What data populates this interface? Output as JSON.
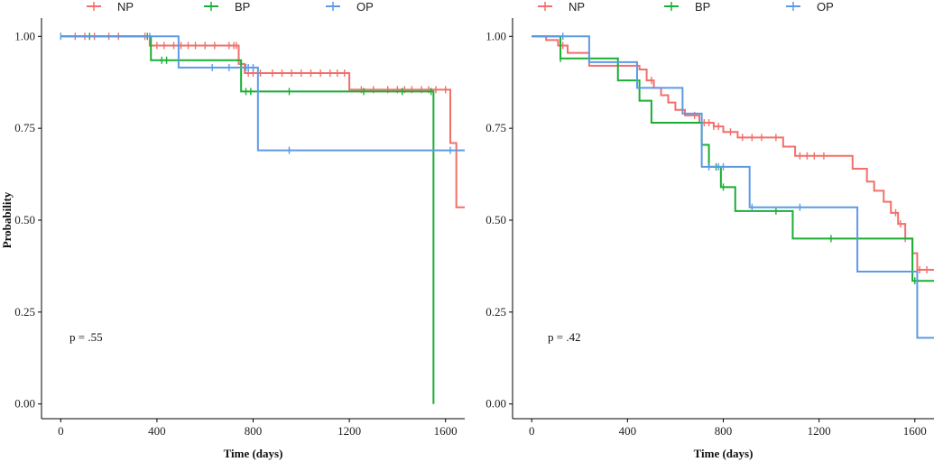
{
  "chart_data": [
    {
      "type": "line",
      "subtype": "kaplan-meier",
      "xlabel": "Time (days)",
      "ylabel": "Probability",
      "xlim": [
        -80,
        1680
      ],
      "ylim": [
        -0.04,
        1.04
      ],
      "xticks": [
        0,
        400,
        800,
        1200,
        1600
      ],
      "yticks": [
        0.0,
        0.25,
        0.5,
        0.75,
        1.0
      ],
      "xtick_labels": [
        "0",
        "400",
        "800",
        "1200",
        "1600"
      ],
      "ytick_labels": [
        "0.00",
        "0.25",
        "0.50",
        "0.75",
        "1.00"
      ],
      "annotation": "p = .55",
      "legend_position": "top",
      "series": [
        {
          "name": "NP",
          "color": "#F26F6A",
          "x": [
            0,
            370,
            740,
            765,
            1200,
            1620,
            1645,
            1680
          ],
          "y": [
            1.0,
            0.975,
            0.925,
            0.9,
            0.855,
            0.71,
            0.535,
            0.535
          ],
          "censor_x": [
            60,
            100,
            140,
            200,
            240,
            350,
            400,
            430,
            470,
            500,
            530,
            560,
            600,
            640,
            700,
            720,
            730,
            780,
            800,
            830,
            880,
            920,
            960,
            1000,
            1040,
            1080,
            1120,
            1150,
            1180,
            1250,
            1300,
            1360,
            1400,
            1430,
            1460,
            1500,
            1530,
            1560,
            1600
          ]
        },
        {
          "name": "BP",
          "color": "#1AAE35",
          "x": [
            0,
            375,
            750,
            1550,
            1550
          ],
          "y": [
            1.0,
            0.935,
            0.85,
            0.85,
            0.0
          ],
          "censor_x": [
            120,
            360,
            420,
            440,
            770,
            790,
            950,
            1260,
            1420,
            1540
          ]
        },
        {
          "name": "OP",
          "color": "#5B9BE5",
          "x": [
            0,
            490,
            820,
            1680
          ],
          "y": [
            1.0,
            0.915,
            0.69,
            0.69
          ],
          "censor_x": [
            0,
            370,
            630,
            700,
            770,
            780,
            800,
            950,
            1620
          ]
        }
      ]
    },
    {
      "type": "line",
      "subtype": "kaplan-meier",
      "xlabel": "Time (days)",
      "ylabel": "",
      "xlim": [
        -80,
        1680
      ],
      "ylim": [
        -0.04,
        1.04
      ],
      "xticks": [
        0,
        400,
        800,
        1200,
        1600
      ],
      "yticks": [
        0.0,
        0.25,
        0.5,
        0.75,
        1.0
      ],
      "xtick_labels": [
        "0",
        "400",
        "800",
        "1200",
        "1600"
      ],
      "ytick_labels": [
        "0.00",
        "0.25",
        "0.50",
        "0.75",
        "1.00"
      ],
      "annotation": "p = .42",
      "legend_position": "top",
      "series": [
        {
          "name": "NP",
          "color": "#F26F6A",
          "x": [
            0,
            60,
            110,
            150,
            240,
            450,
            480,
            510,
            540,
            570,
            600,
            640,
            700,
            760,
            800,
            860,
            1050,
            1100,
            1340,
            1400,
            1430,
            1470,
            1500,
            1530,
            1560,
            1590,
            1610,
            1680
          ],
          "y": [
            1.0,
            0.99,
            0.975,
            0.955,
            0.92,
            0.91,
            0.88,
            0.86,
            0.84,
            0.82,
            0.8,
            0.785,
            0.765,
            0.755,
            0.74,
            0.725,
            0.7,
            0.675,
            0.64,
            0.605,
            0.58,
            0.55,
            0.52,
            0.49,
            0.45,
            0.41,
            0.365,
            0.365
          ],
          "censor_x": [
            130,
            500,
            680,
            720,
            740,
            760,
            780,
            830,
            880,
            920,
            960,
            1020,
            1120,
            1150,
            1180,
            1220,
            1520,
            1540,
            1560,
            1620,
            1650
          ]
        },
        {
          "name": "BP",
          "color": "#1AAE35",
          "x": [
            0,
            120,
            360,
            450,
            500,
            710,
            740,
            790,
            850,
            1090,
            1590,
            1680
          ],
          "y": [
            1.0,
            0.94,
            0.88,
            0.825,
            0.765,
            0.705,
            0.645,
            0.59,
            0.525,
            0.45,
            0.335,
            0.335
          ],
          "censor_x": [
            120,
            770,
            800,
            1020,
            1250,
            1600
          ]
        },
        {
          "name": "OP",
          "color": "#5B9BE5",
          "x": [
            0,
            240,
            440,
            630,
            710,
            910,
            1360,
            1610,
            1680
          ],
          "y": [
            1.0,
            0.93,
            0.86,
            0.79,
            0.645,
            0.535,
            0.36,
            0.18,
            0.18
          ],
          "censor_x": [
            130,
            740,
            780,
            800,
            920,
            1120
          ]
        }
      ]
    }
  ]
}
